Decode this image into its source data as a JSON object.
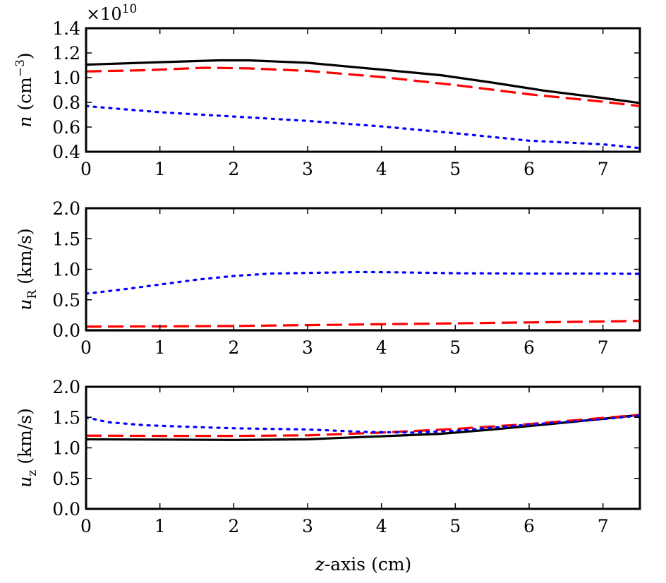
{
  "chart_data": [
    {
      "type": "line",
      "ylabel_main": "n",
      "ylabel_unit": " (cm",
      "ylabel_exp": "−3",
      "ylabel_close": ")",
      "multiplier_base": "×10",
      "multiplier_exp": "10",
      "xlim": [
        0,
        7.5
      ],
      "ylim": [
        0.4,
        1.4
      ],
      "xticks": [
        0,
        1,
        2,
        3,
        4,
        5,
        6,
        7
      ],
      "xtick_labels": [
        "0",
        "1",
        "2",
        "3",
        "4",
        "5",
        "6",
        "7"
      ],
      "yticks": [
        0.4,
        0.6,
        0.8,
        1.0,
        1.2,
        1.4
      ],
      "ytick_labels": [
        "0.4",
        "0.6",
        "0.8",
        "1.0",
        "1.2",
        "1.4"
      ],
      "series": [
        {
          "name": "solid",
          "color": "#000000",
          "style": "solid",
          "x": [
            0,
            1,
            1.8,
            2.2,
            3,
            4,
            4.8,
            5.5,
            6.2,
            7,
            7.5
          ],
          "y": [
            1.105,
            1.125,
            1.14,
            1.14,
            1.12,
            1.065,
            1.02,
            0.96,
            0.895,
            0.835,
            0.795
          ]
        },
        {
          "name": "dashed",
          "color": "#ff0000",
          "style": "dashed",
          "x": [
            0,
            0.8,
            1.6,
            2.2,
            3,
            4,
            5,
            6,
            7,
            7.5
          ],
          "y": [
            1.05,
            1.06,
            1.08,
            1.075,
            1.055,
            1.005,
            0.94,
            0.865,
            0.805,
            0.77
          ]
        },
        {
          "name": "dotted",
          "color": "#0000ff",
          "style": "dotted",
          "x": [
            0,
            1,
            2,
            3,
            4,
            5,
            6,
            7,
            7.5
          ],
          "y": [
            0.77,
            0.72,
            0.685,
            0.65,
            0.605,
            0.55,
            0.49,
            0.46,
            0.43
          ]
        }
      ]
    },
    {
      "type": "line",
      "ylabel_main": "u",
      "ylabel_sub": "R",
      "ylabel_unit": " (km/s)",
      "xlim": [
        0,
        7.5
      ],
      "ylim": [
        0.0,
        2.0
      ],
      "xticks": [
        0,
        1,
        2,
        3,
        4,
        5,
        6,
        7
      ],
      "xtick_labels": [
        "0",
        "1",
        "2",
        "3",
        "4",
        "5",
        "6",
        "7"
      ],
      "yticks": [
        0.0,
        0.5,
        1.0,
        1.5,
        2.0
      ],
      "ytick_labels": [
        "0.0",
        "0.5",
        "1.0",
        "1.5",
        "2.0"
      ],
      "series": [
        {
          "name": "solid",
          "color": "#000000",
          "style": "solid",
          "x": [
            0,
            7.5
          ],
          "y": [
            0.0,
            0.0
          ]
        },
        {
          "name": "dashed",
          "color": "#ff0000",
          "style": "dashed",
          "x": [
            0,
            1,
            2,
            3,
            4,
            5,
            6,
            7,
            7.5
          ],
          "y": [
            0.06,
            0.065,
            0.07,
            0.085,
            0.1,
            0.115,
            0.13,
            0.145,
            0.155
          ]
        },
        {
          "name": "dotted",
          "color": "#0000ff",
          "style": "dotted",
          "x": [
            0,
            0.5,
            1,
            1.5,
            2,
            2.5,
            3,
            3.7,
            4.2,
            5,
            6,
            7,
            7.5
          ],
          "y": [
            0.6,
            0.67,
            0.75,
            0.83,
            0.89,
            0.93,
            0.94,
            0.955,
            0.95,
            0.935,
            0.93,
            0.93,
            0.925
          ]
        }
      ]
    },
    {
      "type": "line",
      "ylabel_main": "u",
      "ylabel_sub": "z",
      "ylabel_unit": " (km/s)",
      "xlabel_main": "z",
      "xlabel_rest": "-axis (cm)",
      "xlim": [
        0,
        7.5
      ],
      "ylim": [
        0.0,
        2.0
      ],
      "xticks": [
        0,
        1,
        2,
        3,
        4,
        5,
        6,
        7
      ],
      "xtick_labels": [
        "0",
        "1",
        "2",
        "3",
        "4",
        "5",
        "6",
        "7"
      ],
      "yticks": [
        0.0,
        0.5,
        1.0,
        1.5,
        2.0
      ],
      "ytick_labels": [
        "0.0",
        "0.5",
        "1.0",
        "1.5",
        "2.0"
      ],
      "series": [
        {
          "name": "solid",
          "color": "#000000",
          "style": "solid",
          "x": [
            0,
            1,
            2,
            3,
            3.5,
            4,
            4.8,
            5.5,
            6.2,
            7,
            7.5
          ],
          "y": [
            1.14,
            1.135,
            1.13,
            1.14,
            1.165,
            1.19,
            1.23,
            1.3,
            1.38,
            1.475,
            1.54
          ]
        },
        {
          "name": "dashed",
          "color": "#ff0000",
          "style": "dashed",
          "x": [
            0,
            1,
            2,
            3,
            4,
            4.5,
            5,
            6,
            7,
            7.5
          ],
          "y": [
            1.2,
            1.195,
            1.195,
            1.205,
            1.25,
            1.28,
            1.31,
            1.39,
            1.49,
            1.54
          ]
        },
        {
          "name": "dotted",
          "color": "#0000ff",
          "style": "dotted",
          "x": [
            0,
            0.3,
            0.8,
            1.5,
            2,
            3,
            3.8,
            4.4,
            5,
            6,
            7,
            7.5
          ],
          "y": [
            1.5,
            1.42,
            1.37,
            1.34,
            1.32,
            1.3,
            1.26,
            1.25,
            1.28,
            1.38,
            1.47,
            1.53
          ]
        }
      ]
    }
  ]
}
